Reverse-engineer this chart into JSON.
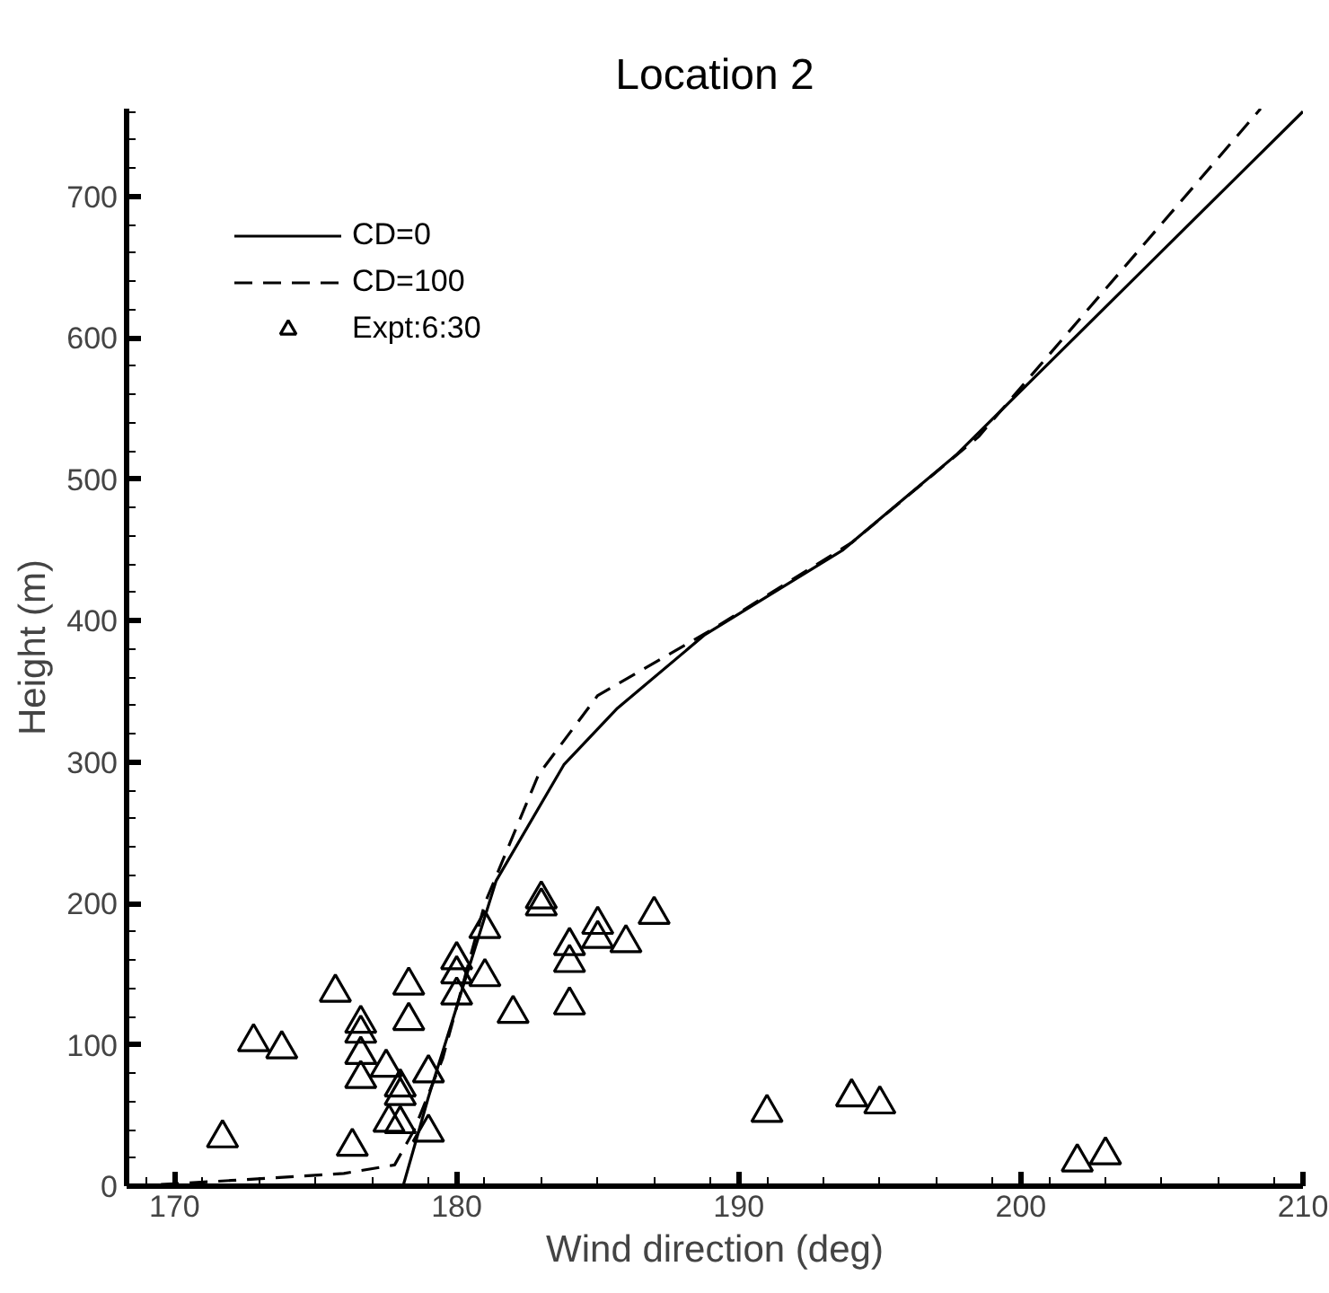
{
  "chart_data": {
    "type": "line",
    "title": "Location 2",
    "xlabel": "Wind direction (deg)",
    "ylabel": "Height (m)",
    "xlim": [
      168.3,
      210
    ],
    "ylim": [
      0,
      762
    ],
    "xticks": [
      170,
      180,
      190,
      200,
      210
    ],
    "yticks": [
      0,
      100,
      200,
      300,
      400,
      500,
      600,
      700
    ],
    "grid": false,
    "legend": "top left",
    "series": [
      {
        "name": "CD=0",
        "color": "#000000",
        "line_style": "solid",
        "marker": "none",
        "x": [
          178.1,
          179,
          181.4,
          183.8,
          185.7,
          188.8,
          193.7,
          197.7,
          210
        ],
        "values": [
          0,
          63,
          216,
          298,
          338,
          390,
          450,
          517,
          760
        ]
      },
      {
        "name": "CD=100",
        "color": "#000000",
        "line_style": "dashed",
        "marker": "none",
        "x": [
          168.5,
          172,
          176,
          177.8,
          178.5,
          179.5,
          181,
          182.9,
          185,
          189,
          194,
          198.5,
          208.5
        ],
        "values": [
          0,
          4,
          9,
          15,
          40,
          90,
          200,
          291,
          347,
          393,
          455,
          530,
          762
        ]
      },
      {
        "name": "Expt:6:30",
        "type": "scatter",
        "color": "#000000",
        "marker": "triangle",
        "x": [
          171.7,
          172.8,
          173.8,
          175.7,
          176.6,
          176.6,
          176.6,
          176.6,
          176.3,
          177.5,
          177.6,
          178.3,
          178.3,
          178,
          178,
          178,
          179,
          179,
          180,
          180,
          180,
          181,
          181,
          182,
          183,
          183,
          184,
          184,
          184,
          185,
          185,
          186,
          187,
          191,
          194,
          195,
          202,
          203
        ],
        "values": [
          34,
          102,
          97,
          137,
          115,
          108,
          93,
          76,
          28,
          84,
          45,
          142,
          117,
          70,
          64,
          44,
          80,
          38,
          160,
          150,
          135,
          182,
          148,
          122,
          203,
          198,
          170,
          158,
          128,
          185,
          175,
          172,
          192,
          52,
          63,
          58,
          17,
          22
        ]
      }
    ]
  }
}
